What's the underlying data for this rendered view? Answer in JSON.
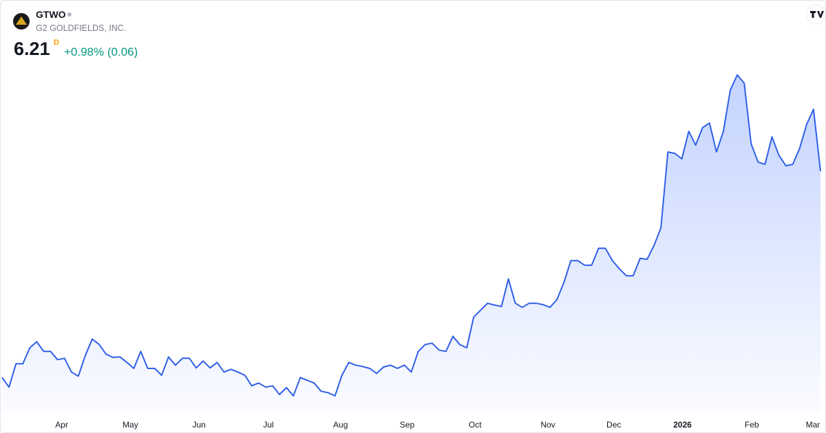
{
  "header": {
    "symbol": "GTWO",
    "company": "G2 GOLDFIELDS, INC.",
    "price": "6.21",
    "interval": "D",
    "change": "+0.98% (0.06)"
  },
  "chart_data": {
    "type": "area",
    "color": "#2f5fe8",
    "values": [
      1.71,
      1.5,
      2.01,
      2.01,
      2.36,
      2.49,
      2.28,
      2.28,
      2.1,
      2.13,
      1.83,
      1.74,
      2.19,
      2.55,
      2.43,
      2.22,
      2.15,
      2.16,
      2.04,
      1.91,
      2.28,
      1.91,
      1.91,
      1.76,
      2.16,
      1.98,
      2.13,
      2.13,
      1.92,
      2.07,
      1.92,
      2.04,
      1.83,
      1.89,
      1.83,
      1.76,
      1.53,
      1.59,
      1.5,
      1.53,
      1.34,
      1.49,
      1.31,
      1.71,
      1.65,
      1.59,
      1.41,
      1.38,
      1.31,
      1.76,
      2.04,
      1.98,
      1.95,
      1.91,
      1.8,
      1.94,
      1.98,
      1.91,
      1.98,
      1.83,
      2.28,
      2.43,
      2.46,
      2.31,
      2.28,
      2.61,
      2.43,
      2.36,
      3.03,
      3.18,
      3.33,
      3.29,
      3.26,
      3.86,
      3.33,
      3.24,
      3.33,
      3.33,
      3.3,
      3.24,
      3.41,
      3.78,
      4.26,
      4.26,
      4.16,
      4.16,
      4.53,
      4.53,
      4.26,
      4.08,
      3.93,
      3.93,
      4.31,
      4.29,
      4.59,
      4.98,
      6.63,
      6.6,
      6.48,
      7.08,
      6.78,
      7.16,
      7.26,
      6.63,
      7.08,
      7.98,
      8.31,
      8.13,
      6.81,
      6.41,
      6.36,
      6.96,
      6.56,
      6.33,
      6.36,
      6.71,
      7.23,
      7.56,
      6.21
    ],
    "xticks": [
      {
        "value": 8.6,
        "label": "Apr"
      },
      {
        "value": 18.5,
        "label": "May"
      },
      {
        "value": 28.4,
        "label": "Jun"
      },
      {
        "value": 38.4,
        "label": "Jul"
      },
      {
        "value": 48.8,
        "label": "Aug"
      },
      {
        "value": 58.4,
        "label": "Sep"
      },
      {
        "value": 68.2,
        "label": "Oct"
      },
      {
        "value": 78.7,
        "label": "Nov"
      },
      {
        "value": 88.2,
        "label": "Dec"
      },
      {
        "value": 98.1,
        "label": "2026"
      },
      {
        "value": 108.1,
        "label": "Feb"
      },
      {
        "value": 116.9,
        "label": "Mar"
      }
    ]
  }
}
